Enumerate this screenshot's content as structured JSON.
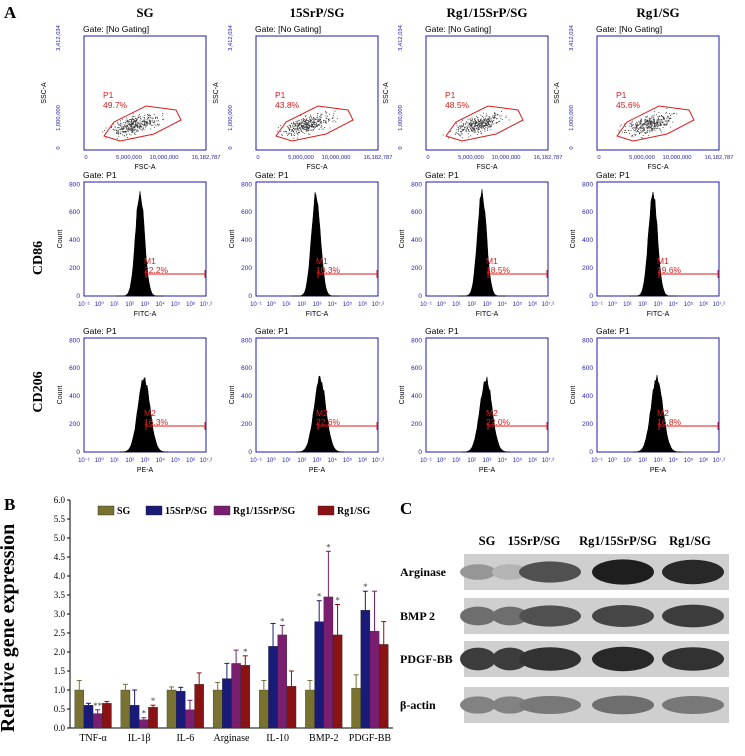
{
  "panel_a": {
    "letter": "A",
    "columns": [
      "SG",
      "15SrP/SG",
      "Rg1/15SrP/SG",
      "Rg1/SG"
    ],
    "row_labels": [
      "CD86",
      "CD206"
    ],
    "gate_texts": [
      "Gate: [No Gating]",
      "Gate: P1",
      "Gate: P1"
    ],
    "scatter": {
      "ylabel": "SSC-A",
      "xlabel": "FSC-A",
      "yticks": [
        "0",
        "1,000,000",
        "3,412,034"
      ],
      "xticks": [
        "0",
        "5,000,000",
        "10,000,000",
        "16,182,787"
      ],
      "region_label": "P1",
      "percents": [
        "49.7%",
        "43.8%",
        "48.5%",
        "45.6%"
      ]
    },
    "hist_cd86": {
      "xlabel": "FITC-A",
      "ylabel": "Count",
      "yticks": [
        "0",
        "200",
        "400",
        "600",
        "800"
      ],
      "xticks": [
        "10⁻¹",
        "10⁰",
        "10¹",
        "10²",
        "10³",
        "10⁴",
        "10⁵",
        "10⁶",
        "10⁷.²"
      ],
      "marker": "M1",
      "percents": [
        "22.2%",
        "10.3%",
        "18.5%",
        "19.6%"
      ]
    },
    "hist_cd206": {
      "xlabel": "PE-A",
      "ylabel": "Count",
      "yticks": [
        "0",
        "200",
        "400",
        "600",
        "800"
      ],
      "xticks": [
        "10⁻¹",
        "10⁰",
        "10¹",
        "10²",
        "10³",
        "10⁴",
        "10⁵",
        "10⁶",
        "10⁷.²"
      ],
      "marker": "M2",
      "percents": [
        "16.3%",
        "22.6%",
        "22.0%",
        "16.8%"
      ]
    }
  },
  "panel_b": {
    "letter": "B",
    "chart_data": {
      "type": "bar",
      "title": "",
      "xlabel": "",
      "ylabel": "Relative gene expression",
      "ylim": [
        0,
        6.0
      ],
      "yticks": [
        "0.0",
        "0.5",
        "1.0",
        "1.5",
        "2.0",
        "2.5",
        "3.0",
        "3.5",
        "4.0",
        "4.5",
        "5.0",
        "5.5",
        "6.0"
      ],
      "categories": [
        "TNF-α",
        "IL-1β",
        "IL-6",
        "Arginase",
        "IL-10",
        "BMP-2",
        "PDGF-BB"
      ],
      "legend_position": "top",
      "series": [
        {
          "name": "SG",
          "color": "#7a7230",
          "values": [
            1.0,
            1.0,
            1.0,
            1.0,
            1.0,
            1.0,
            1.05
          ],
          "errors": [
            0.25,
            0.15,
            0.08,
            0.2,
            0.25,
            0.25,
            0.35
          ],
          "sig": [
            "",
            "",
            "",
            "",
            "",
            "",
            ""
          ]
        },
        {
          "name": "15SrP/SG",
          "color": "#1a1a78",
          "values": [
            0.6,
            0.6,
            0.97,
            1.3,
            2.15,
            2.8,
            3.1
          ],
          "errors": [
            0.05,
            0.4,
            0.1,
            0.4,
            0.6,
            0.55,
            0.5
          ],
          "sig": [
            "",
            "",
            "",
            "",
            "",
            "*",
            "*"
          ]
        },
        {
          "name": "Rg1/15SrP/SG",
          "color": "#7a1e70",
          "values": [
            0.38,
            0.22,
            0.48,
            1.7,
            2.45,
            3.45,
            2.55
          ],
          "errors": [
            0.1,
            0.05,
            0.25,
            0.35,
            0.25,
            1.2,
            1.05
          ],
          "sig": [
            "**",
            "*",
            "",
            "",
            "*",
            "*",
            ""
          ]
        },
        {
          "name": "Rg1/SG",
          "color": "#8b1212",
          "values": [
            0.65,
            0.55,
            1.15,
            1.65,
            1.1,
            2.45,
            2.2
          ],
          "errors": [
            0.05,
            0.05,
            0.3,
            0.25,
            0.4,
            0.8,
            0.6
          ],
          "sig": [
            "",
            "*",
            "",
            "*",
            "",
            "*",
            ""
          ]
        }
      ]
    }
  },
  "panel_c": {
    "letter": "C",
    "columns": [
      "SG",
      "15SrP/SG",
      "Rg1/15SrP/SG",
      "Rg1/SG"
    ],
    "rows": [
      "Arginase",
      "BMP 2",
      "PDGF-BB",
      "β-actin"
    ],
    "band_intensity": [
      [
        0.35,
        0.7,
        0.95,
        0.9
      ],
      [
        0.55,
        0.7,
        0.75,
        0.8
      ],
      [
        0.8,
        0.85,
        0.9,
        0.85
      ],
      [
        0.45,
        0.5,
        0.55,
        0.5
      ]
    ]
  }
}
